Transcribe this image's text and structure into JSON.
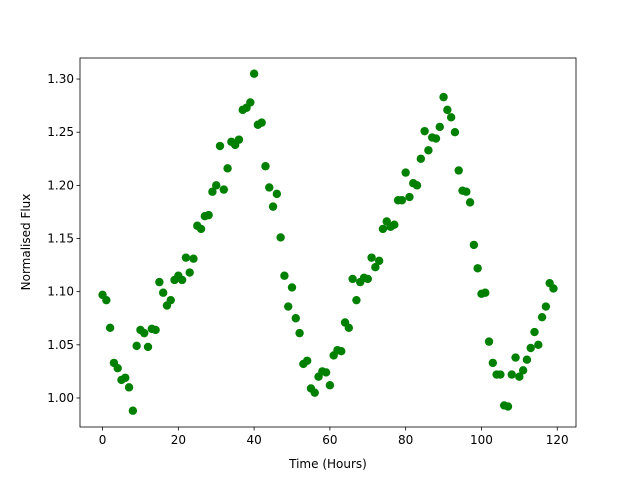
{
  "chart_data": {
    "type": "scatter",
    "xlabel": "Time (Hours)",
    "ylabel": "Normalised Flux",
    "x": [
      0,
      1,
      2,
      3,
      4,
      5,
      6,
      7,
      8,
      9,
      10,
      11,
      12,
      13,
      14,
      15,
      16,
      17,
      18,
      19,
      20,
      21,
      22,
      23,
      24,
      25,
      26,
      27,
      28,
      29,
      30,
      31,
      32,
      33,
      34,
      35,
      36,
      37,
      38,
      39,
      40,
      41,
      42,
      43,
      44,
      45,
      46,
      47,
      48,
      49,
      50,
      51,
      52,
      53,
      54,
      55,
      56,
      57,
      58,
      59,
      60,
      61,
      62,
      63,
      64,
      65,
      66,
      67,
      68,
      69,
      70,
      71,
      72,
      73,
      74,
      75,
      76,
      77,
      78,
      79,
      80,
      81,
      82,
      83,
      84,
      85,
      86,
      87,
      88,
      89,
      90,
      91,
      92,
      93,
      94,
      95,
      96,
      97,
      98,
      99,
      100,
      101,
      102,
      103,
      104,
      105,
      106,
      107,
      108,
      109,
      110,
      111,
      112,
      113,
      114,
      115,
      116,
      117,
      118,
      119
    ],
    "series": [
      {
        "color": "#008000",
        "values": [
          1.097,
          1.092,
          1.066,
          1.033,
          1.028,
          1.017,
          1.019,
          1.01,
          0.988,
          1.049,
          1.064,
          1.061,
          1.048,
          1.065,
          1.064,
          1.109,
          1.099,
          1.087,
          1.092,
          1.111,
          1.115,
          1.111,
          1.132,
          1.118,
          1.131,
          1.162,
          1.159,
          1.171,
          1.172,
          1.194,
          1.2,
          1.237,
          1.196,
          1.216,
          1.241,
          1.238,
          1.243,
          1.271,
          1.273,
          1.278,
          1.305,
          1.257,
          1.259,
          1.218,
          1.198,
          1.18,
          1.192,
          1.151,
          1.115,
          1.086,
          1.104,
          1.075,
          1.061,
          1.032,
          1.035,
          1.009,
          1.005,
          1.02,
          1.025,
          1.024,
          1.012,
          1.04,
          1.045,
          1.044,
          1.071,
          1.066,
          1.112,
          1.092,
          1.109,
          1.113,
          1.112,
          1.132,
          1.123,
          1.129,
          1.159,
          1.166,
          1.161,
          1.163,
          1.186,
          1.186,
          1.212,
          1.189,
          1.202,
          1.2,
          1.225,
          1.251,
          1.233,
          1.245,
          1.244,
          1.255,
          1.283,
          1.271,
          1.264,
          1.25,
          1.214,
          1.195,
          1.194,
          1.184,
          1.144,
          1.122,
          1.098,
          1.099,
          1.053,
          1.033,
          1.022,
          1.022,
          0.993,
          0.992,
          1.022,
          1.038,
          1.02,
          1.026,
          1.036,
          1.047,
          1.062,
          1.05,
          1.076,
          1.086,
          1.108,
          1.103
        ]
      }
    ],
    "xlim": [
      -5.95,
      124.95
    ],
    "ylim": [
      0.9727,
      1.3198
    ],
    "xticks": [
      0,
      20,
      40,
      60,
      80,
      100,
      120
    ],
    "yticks": [
      {
        "value": 1.0,
        "label": "1.00"
      },
      1.05,
      {
        "value": 1.1,
        "label": "1.10"
      },
      1.15,
      {
        "value": 1.2,
        "label": "1.20"
      },
      1.25,
      {
        "value": 1.3,
        "label": "1.30"
      }
    ]
  }
}
